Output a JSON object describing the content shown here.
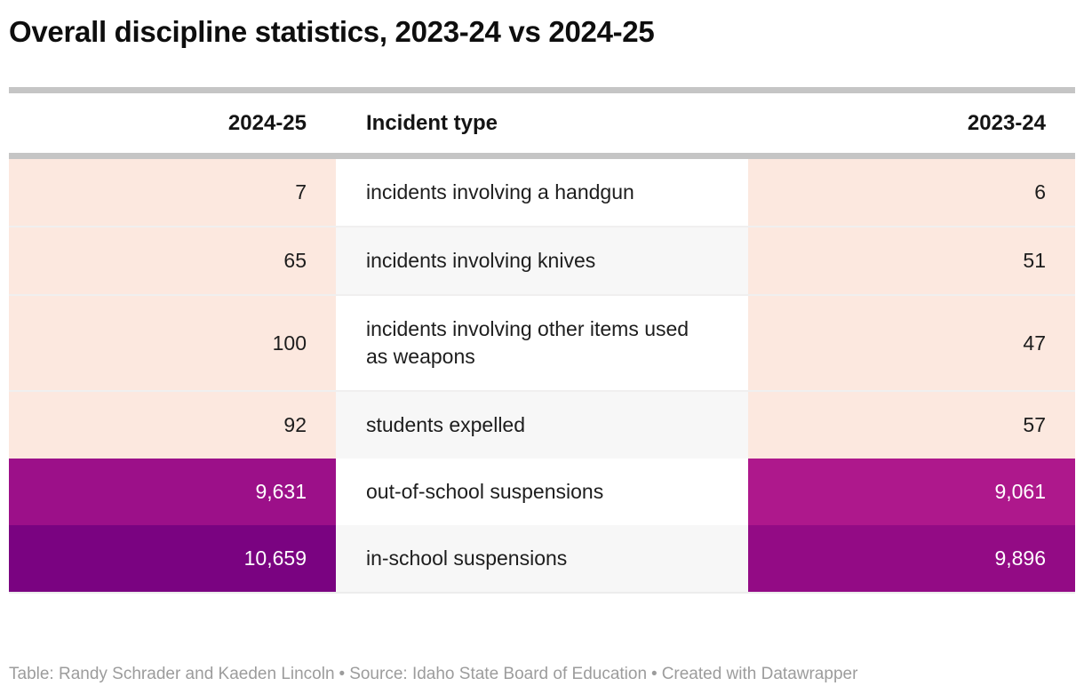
{
  "title": "Overall discipline statistics, 2023-24 vs 2024-25",
  "colors": {
    "divider_bar": "#c5c5c5",
    "peach_low": "#fce8df",
    "zebra_white": "#ffffff",
    "zebra_gray": "#f7f7f7",
    "magenta_9061": "#ae188c",
    "magenta_9631": "#9c1089",
    "purple_9896": "#930b85",
    "purple_10659": "#7a0381",
    "dark_text": "#1d1d1d",
    "light_text": "#ffffff",
    "footer_text": "#9c9c9c"
  },
  "table": {
    "columns": [
      {
        "label": "2024-25"
      },
      {
        "label": "Incident type"
      },
      {
        "label": "2023-24"
      }
    ],
    "rows": [
      {
        "y2425": "7",
        "incident": "incidents involving a handgun",
        "y2324": "6",
        "left_bg": "#fce8df",
        "incident_bg": "#ffffff",
        "right_bg": "#fce8df",
        "value_color": "#1d1d1d"
      },
      {
        "y2425": "65",
        "incident": "incidents involving knives",
        "y2324": "51",
        "left_bg": "#fce8df",
        "incident_bg": "#f7f7f7",
        "right_bg": "#fce8df",
        "value_color": "#1d1d1d"
      },
      {
        "y2425": "100",
        "incident": "incidents involving other items used as weapons",
        "y2324": "47",
        "left_bg": "#fce8df",
        "incident_bg": "#ffffff",
        "right_bg": "#fce8df",
        "value_color": "#1d1d1d"
      },
      {
        "y2425": "92",
        "incident": "students expelled",
        "y2324": "57",
        "left_bg": "#fce8df",
        "incident_bg": "#f7f7f7",
        "right_bg": "#fce8df",
        "value_color": "#1d1d1d"
      },
      {
        "y2425": "9,631",
        "incident": "out-of-school suspensions",
        "y2324": "9,061",
        "left_bg": "#9c1089",
        "incident_bg": "#ffffff",
        "right_bg": "#ae188c",
        "value_color": "#ffffff"
      },
      {
        "y2425": "10,659",
        "incident": "in-school suspensions",
        "y2324": "9,896",
        "left_bg": "#7a0381",
        "incident_bg": "#f7f7f7",
        "right_bg": "#930b85",
        "value_color": "#ffffff"
      }
    ]
  },
  "footer": {
    "table_credit": "Table: Randy Schrader and Kaeden Lincoln",
    "source": "Source: Idaho State Board of Education",
    "created": "Created with Datawrapper",
    "separator": "•"
  },
  "chart_data": {
    "type": "table",
    "title": "Overall discipline statistics, 2023-24 vs 2024-25",
    "columns": [
      "2024-25",
      "Incident type",
      "2023-24"
    ],
    "incident_types": [
      "incidents involving a handgun",
      "incidents involving knives",
      "incidents involving other items used as weapons",
      "students expelled",
      "out-of-school suspensions",
      "in-school suspensions"
    ],
    "series": [
      {
        "name": "2024-25",
        "values": [
          7,
          65,
          100,
          92,
          9631,
          10659
        ]
      },
      {
        "name": "2023-24",
        "values": [
          6,
          51,
          47,
          57,
          9061,
          9896
        ]
      }
    ],
    "heatmap": true,
    "heatmap_note": "numeric cells shaded light peach for low values to dark purple for high values"
  }
}
